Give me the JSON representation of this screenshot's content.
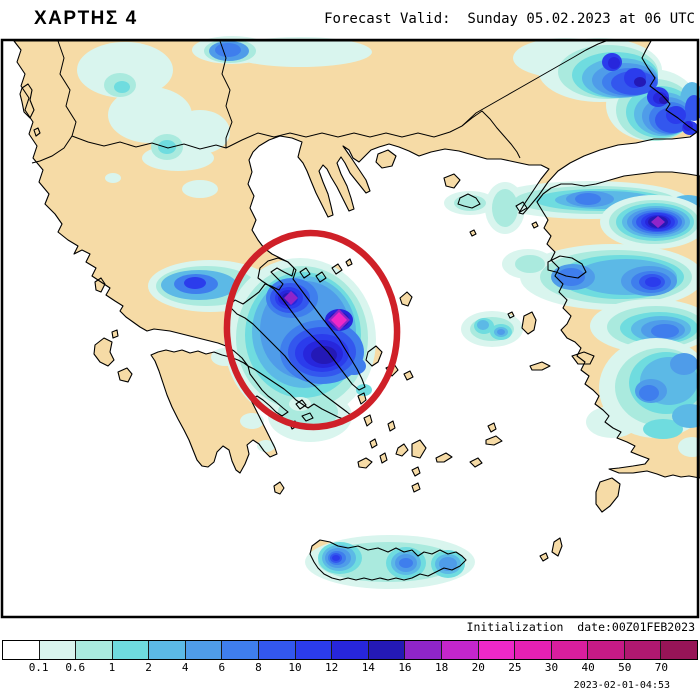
{
  "header": {
    "title": "ΧΑΡΤΗΣ 4",
    "forecast_valid": "Forecast Valid:  Sunday 05.02.2023 at 06 UTC"
  },
  "footer": {
    "initialization": "Initialization  date:00Z01FEB2023",
    "timestamp": "2023-02-01-04:53"
  },
  "map": {
    "region": "Greece and the Aegean",
    "annotation": "red ellipse highlighting heavy precipitation over Evia / Attica",
    "land_color": "#f6dba6",
    "sea_color": "#ffffff",
    "coast_color": "#000000",
    "annotation_color": "#cf2028"
  },
  "legend": {
    "boundaries": [
      "0.1",
      "0.6",
      "1",
      "2",
      "4",
      "6",
      "8",
      "10",
      "12",
      "14",
      "16",
      "18",
      "20",
      "25",
      "30",
      "40",
      "50",
      "70"
    ],
    "colors": [
      "#ffffff",
      "#d9f5ee",
      "#aaeade",
      "#6fdcdf",
      "#5cb9e6",
      "#4f9ce9",
      "#3f7eed",
      "#3357ee",
      "#2b3cec",
      "#2726dc",
      "#2419b6",
      "#8f25c9",
      "#c426cb",
      "#ee28c8",
      "#e620b4",
      "#d81e9e",
      "#c61a86",
      "#b01870",
      "#971457"
    ]
  }
}
